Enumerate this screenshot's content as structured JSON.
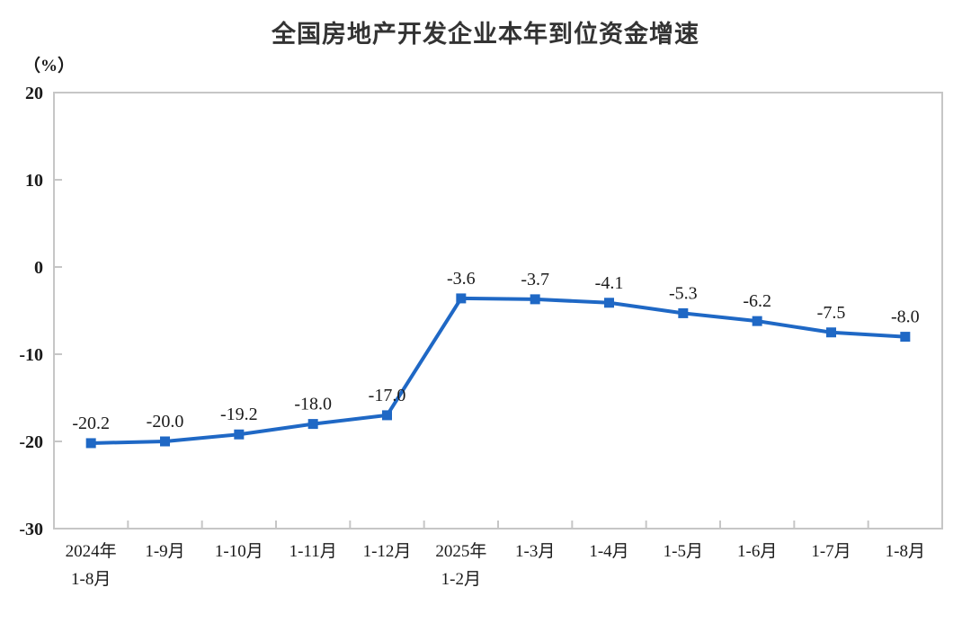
{
  "chart_data": {
    "type": "line",
    "title": "全国房地产开发企业本年到位资金增速",
    "unit_label": "（%）",
    "categories": [
      [
        "2024年",
        "1-8月"
      ],
      [
        "1-9月"
      ],
      [
        "1-10月"
      ],
      [
        "1-11月"
      ],
      [
        "1-12月"
      ],
      [
        "2025年",
        "1-2月"
      ],
      [
        "1-3月"
      ],
      [
        "1-4月"
      ],
      [
        "1-5月"
      ],
      [
        "1-6月"
      ],
      [
        "1-7月"
      ],
      [
        "1-8月"
      ]
    ],
    "values": [
      -20.2,
      -20.0,
      -19.2,
      -18.0,
      -17.0,
      -3.6,
      -3.7,
      -4.1,
      -5.3,
      -6.2,
      -7.5,
      -8.0
    ],
    "data_labels": [
      "-20.2",
      "-20.0",
      "-19.2",
      "-18.0",
      "-17.0",
      "-3.6",
      "-3.7",
      "-4.1",
      "-5.3",
      "-6.2",
      "-7.5",
      "-8.0"
    ],
    "y_ticks": [
      20,
      10,
      0,
      -10,
      -20,
      -30
    ],
    "ylim": [
      -30,
      20
    ],
    "grid": false,
    "legend": "none",
    "marker_shape": "square",
    "colors": {
      "line": "#1f68c5",
      "marker": "#1f68c5",
      "axis": "#c6c6c6",
      "text": "#1a1a1a",
      "title": "#333333"
    }
  }
}
